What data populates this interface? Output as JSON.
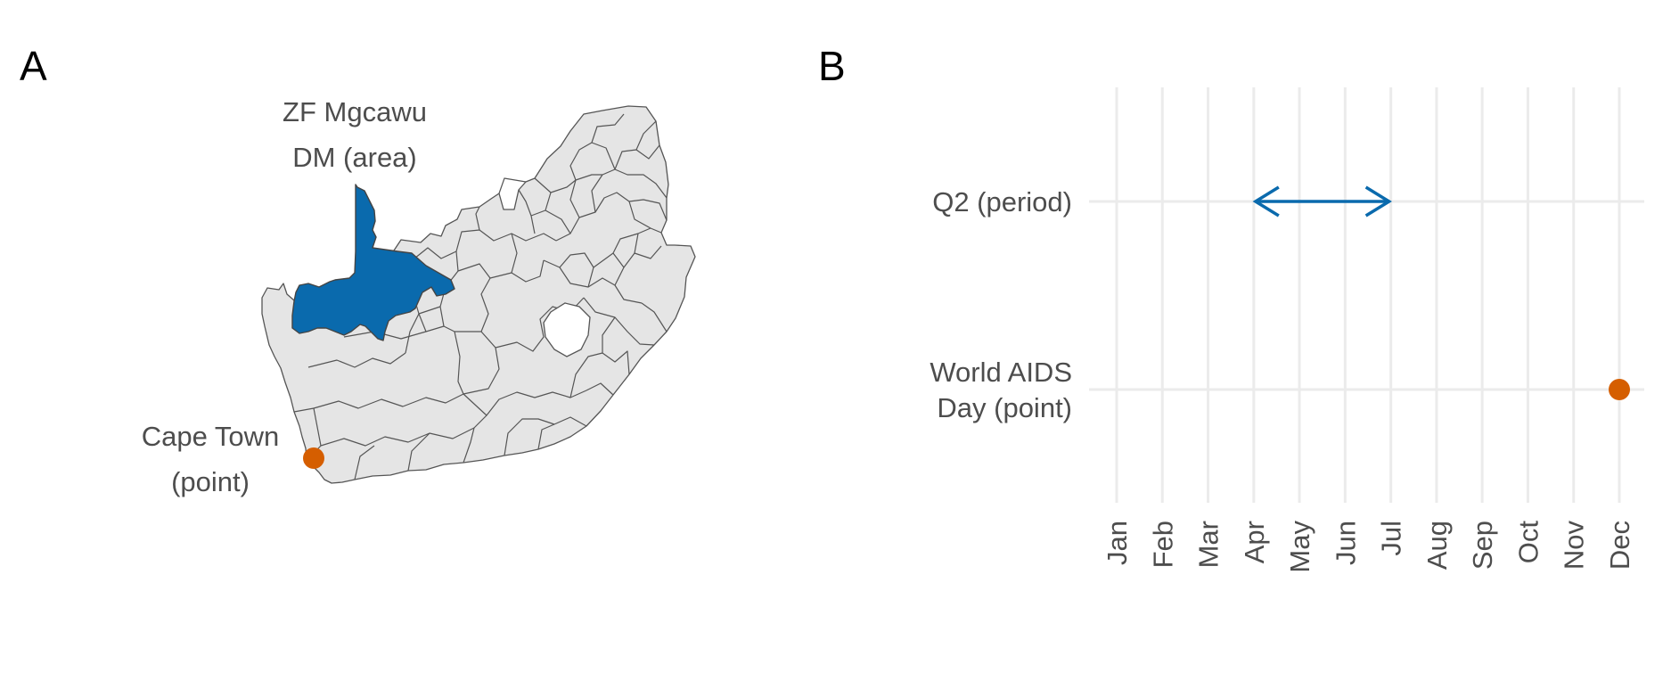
{
  "colors": {
    "area": "#0a6aad",
    "point": "#d55e00",
    "grid": "#ebebeb",
    "text": "#4d4d4d",
    "map_fill": "#e5e5e5",
    "map_border": "#555555"
  },
  "panel_a": {
    "letter": "A",
    "area_label": [
      "ZF Mgcawu",
      "DM (area)"
    ],
    "point_label": [
      "Cape Town",
      "(point)"
    ]
  },
  "panel_b": {
    "letter": "B"
  },
  "chart_data": {
    "type": "timeline",
    "x_categories": [
      "Jan",
      "Feb",
      "Mar",
      "Apr",
      "May",
      "Jun",
      "Jul",
      "Aug",
      "Sep",
      "Oct",
      "Nov",
      "Dec"
    ],
    "y_categories": [
      [
        "Q2 (period)"
      ],
      [
        "World AIDS",
        "Day (point)"
      ]
    ],
    "series": [
      {
        "y": 0,
        "kind": "period",
        "start": "Apr",
        "end": "Jul",
        "color": "#0a6aad"
      },
      {
        "y": 1,
        "kind": "point",
        "at": "Dec",
        "color": "#d55e00"
      }
    ],
    "grid": true,
    "x_tick_rotation": 90
  }
}
